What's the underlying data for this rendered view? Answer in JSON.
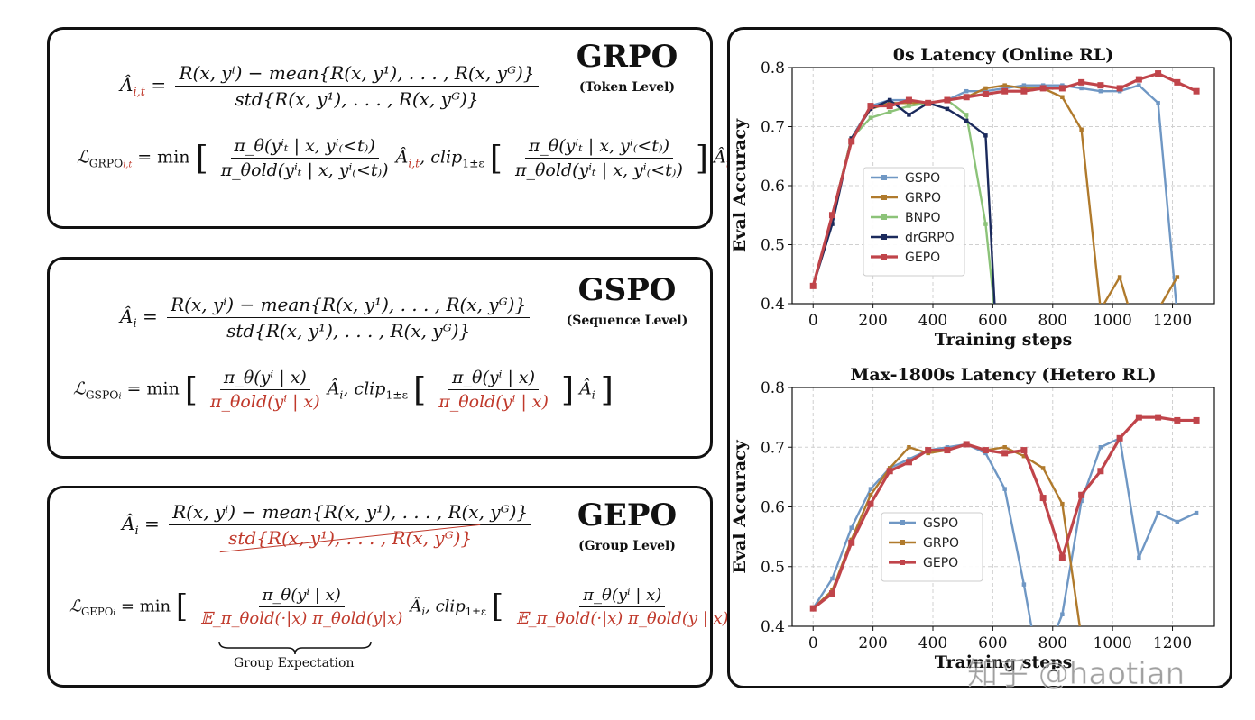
{
  "panels": {
    "grpo": {
      "title": "GRPO",
      "subtitle": "(Token Level)",
      "adv_lhs": "Â",
      "adv_lhs_sub": "i,t",
      "adv_num": "R(x, yⁱ) − mean{R(x, y¹), . . . , R(x, yᴳ)}",
      "adv_den": "std{R(x, y¹), . . . , R(x, yᴳ)}",
      "loss_lhs": "ℒ",
      "loss_lhs_sub": "GRPO",
      "loss_lhs_sub2": "i,t",
      "min": "= min",
      "ratio_num": "π_θ(yⁱₜ | x, yⁱ₍<t₎)",
      "ratio_den": "π_θold(yⁱₜ | x, yⁱ₍<t₎)",
      "adv_term": "Â",
      "adv_term_sub": "i,t",
      "clip": "clip",
      "clip_sub": "1±ε"
    },
    "gspo": {
      "title": "GSPO",
      "subtitle": "(Sequence Level)",
      "adv_lhs": "Â",
      "adv_lhs_sub": "i",
      "adv_num": "R(x, yⁱ) − mean{R(x, y¹), . . . , R(x, yᴳ)}",
      "adv_den": "std{R(x, y¹), . . . , R(x, yᴳ)}",
      "loss_lhs": "ℒ",
      "loss_lhs_sub": "GSPO",
      "loss_lhs_sub2": "i",
      "min": "= min",
      "ratio_num": "π_θ(yⁱ | x)",
      "ratio_den": "π_θold(yⁱ | x)",
      "adv_term": "Â",
      "adv_term_sub": "i",
      "clip": "clip",
      "clip_sub": "1±ε"
    },
    "gepo": {
      "title": "GEPO",
      "subtitle": "(Group Level)",
      "adv_lhs": "Â",
      "adv_lhs_sub": "i",
      "adv_num": "R(x, yⁱ) − mean{R(x, y¹), . . . , R(x, yᴳ)}",
      "adv_den": "std{R(x, y¹), . . . , R(x, yᴳ)}",
      "loss_lhs": "ℒ",
      "loss_lhs_sub": "GEPO",
      "loss_lhs_sub2": "i",
      "min": "= min",
      "ratio_num": "π_θ(yⁱ | x)",
      "ratio_den": "𝔼_π_θold(·|x) π_θold(y|x)",
      "ratio_den_clip": "𝔼_π_θold(·|x) π_θold(y | x)",
      "adv_term": "Â",
      "adv_term_sub": "i",
      "clip": "clip",
      "clip_sub": "1±ε",
      "brace_label": "Group Expectation"
    }
  },
  "watermark": "知乎 @haotian",
  "colors": {
    "GSPO": "#6f97c4",
    "GRPO": "#b07a2c",
    "BNPO": "#8cc379",
    "drGRPO": "#1b2a5c",
    "GEPO": "#c0444a",
    "red_text": "#c0392b"
  },
  "chart_data": [
    {
      "type": "line",
      "title": "0s Latency (Online RL)",
      "xlabel": "Training steps",
      "ylabel": "Eval Accuracy",
      "xlim": [
        -70,
        1340
      ],
      "ylim": [
        0.4,
        0.8
      ],
      "xticks": [
        0,
        200,
        400,
        600,
        800,
        1000,
        1200
      ],
      "yticks": [
        0.4,
        0.5,
        0.6,
        0.7,
        0.8
      ],
      "ytick_labels": [
        "0.4",
        "0.5",
        "0.6",
        "0.7",
        "0.8"
      ],
      "grid": true,
      "legend": "center-left",
      "series": [
        {
          "name": "GSPO",
          "x": [
            0,
            64,
            128,
            192,
            256,
            320,
            384,
            448,
            512,
            576,
            640,
            704,
            768,
            832,
            896,
            960,
            1024,
            1088,
            1152,
            1216
          ],
          "y": [
            0.43,
            0.545,
            0.68,
            0.735,
            0.745,
            0.745,
            0.74,
            0.745,
            0.76,
            0.76,
            0.765,
            0.77,
            0.77,
            0.77,
            0.765,
            0.76,
            0.76,
            0.77,
            0.74,
            0.38
          ]
        },
        {
          "name": "GRPO",
          "x": [
            0,
            64,
            128,
            192,
            256,
            320,
            384,
            448,
            512,
            576,
            640,
            704,
            768,
            832,
            896,
            960,
            1024,
            1056,
            1088,
            1152,
            1216
          ],
          "y": [
            0.43,
            0.55,
            0.68,
            0.73,
            0.74,
            0.74,
            0.74,
            0.745,
            0.75,
            0.765,
            0.77,
            0.765,
            0.765,
            0.75,
            0.695,
            0.39,
            0.445,
            0.39,
            0.37,
            0.39,
            0.445
          ]
        },
        {
          "name": "BNPO",
          "x": [
            0,
            64,
            128,
            192,
            256,
            320,
            384,
            448,
            512,
            576,
            608
          ],
          "y": [
            0.43,
            0.55,
            0.68,
            0.715,
            0.725,
            0.735,
            0.74,
            0.745,
            0.72,
            0.535,
            0.38
          ]
        },
        {
          "name": "drGRPO",
          "x": [
            0,
            64,
            128,
            192,
            256,
            320,
            384,
            448,
            512,
            576,
            608
          ],
          "y": [
            0.43,
            0.535,
            0.68,
            0.73,
            0.745,
            0.72,
            0.74,
            0.73,
            0.71,
            0.685,
            0.38
          ]
        },
        {
          "name": "GEPO",
          "x": [
            0,
            64,
            128,
            192,
            256,
            320,
            384,
            448,
            512,
            576,
            640,
            704,
            768,
            832,
            896,
            960,
            1024,
            1088,
            1152,
            1216,
            1280
          ],
          "y": [
            0.43,
            0.55,
            0.675,
            0.735,
            0.735,
            0.745,
            0.74,
            0.745,
            0.75,
            0.755,
            0.76,
            0.76,
            0.765,
            0.765,
            0.775,
            0.77,
            0.765,
            0.78,
            0.79,
            0.775,
            0.76
          ]
        }
      ]
    },
    {
      "type": "line",
      "title": "Max-1800s Latency (Hetero RL)",
      "xlabel": "Training steps",
      "ylabel": "Eval Accuracy",
      "xlim": [
        -70,
        1340
      ],
      "ylim": [
        0.4,
        0.8
      ],
      "xticks": [
        0,
        200,
        400,
        600,
        800,
        1000,
        1200
      ],
      "yticks": [
        0.4,
        0.5,
        0.6,
        0.7,
        0.8
      ],
      "ytick_labels": [
        "0.4",
        "0.5",
        "0.6",
        "0.7",
        "0.8"
      ],
      "grid": true,
      "legend": "center-left",
      "series": [
        {
          "name": "GSPO",
          "x": [
            0,
            64,
            128,
            192,
            256,
            320,
            384,
            448,
            512,
            576,
            640,
            704,
            736,
            800,
            832,
            896,
            960,
            1024,
            1088,
            1152,
            1216,
            1280
          ],
          "y": [
            0.43,
            0.48,
            0.565,
            0.63,
            0.665,
            0.68,
            0.695,
            0.7,
            0.705,
            0.69,
            0.63,
            0.47,
            0.38,
            0.38,
            0.42,
            0.61,
            0.7,
            0.715,
            0.515,
            0.59,
            0.575,
            0.59
          ]
        },
        {
          "name": "GRPO",
          "x": [
            0,
            64,
            128,
            192,
            256,
            320,
            384,
            448,
            512,
            576,
            640,
            704,
            768,
            832,
            896
          ],
          "y": [
            0.43,
            0.46,
            0.545,
            0.62,
            0.665,
            0.7,
            0.69,
            0.695,
            0.705,
            0.695,
            0.7,
            0.685,
            0.665,
            0.605,
            0.38
          ]
        },
        {
          "name": "GEPO",
          "x": [
            0,
            64,
            128,
            192,
            256,
            320,
            384,
            448,
            512,
            576,
            640,
            704,
            768,
            832,
            896,
            960,
            1024,
            1088,
            1152,
            1216,
            1280
          ],
          "y": [
            0.43,
            0.455,
            0.54,
            0.605,
            0.66,
            0.675,
            0.695,
            0.695,
            0.705,
            0.695,
            0.69,
            0.695,
            0.615,
            0.515,
            0.62,
            0.66,
            0.715,
            0.75,
            0.75,
            0.745,
            0.745
          ]
        }
      ]
    }
  ]
}
